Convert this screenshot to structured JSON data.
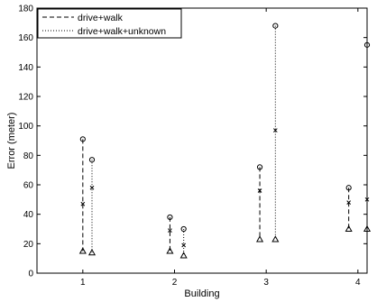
{
  "chart_data": {
    "type": "scatter",
    "xlabel": "Building",
    "ylabel": "Error (meter)",
    "xlim": [
      0.5,
      4.1
    ],
    "ylim": [
      0,
      180
    ],
    "xticks": [
      "1",
      "2",
      "3",
      "4"
    ],
    "yticks": [
      "0",
      "20",
      "40",
      "60",
      "80",
      "100",
      "120",
      "140",
      "160",
      "180"
    ],
    "grid": false,
    "legend_position": "top-left",
    "marker_names": {
      "max": "circle",
      "mean": "x",
      "min": "triangle"
    },
    "series": [
      {
        "name": "drive+walk",
        "line_style": "dashed",
        "x": [
          1.0,
          1.95,
          2.93,
          3.9
        ],
        "max": [
          91,
          38,
          72,
          58
        ],
        "mean": [
          47,
          29,
          56,
          48
        ],
        "min": [
          15,
          15,
          23,
          30
        ]
      },
      {
        "name": "drive+walk+unknown",
        "line_style": "dotted",
        "x": [
          1.1,
          2.1,
          3.1,
          4.1
        ],
        "max": [
          77,
          30,
          168,
          155
        ],
        "mean": [
          58,
          19,
          97,
          50
        ],
        "min": [
          14,
          12,
          23,
          30
        ]
      }
    ]
  }
}
